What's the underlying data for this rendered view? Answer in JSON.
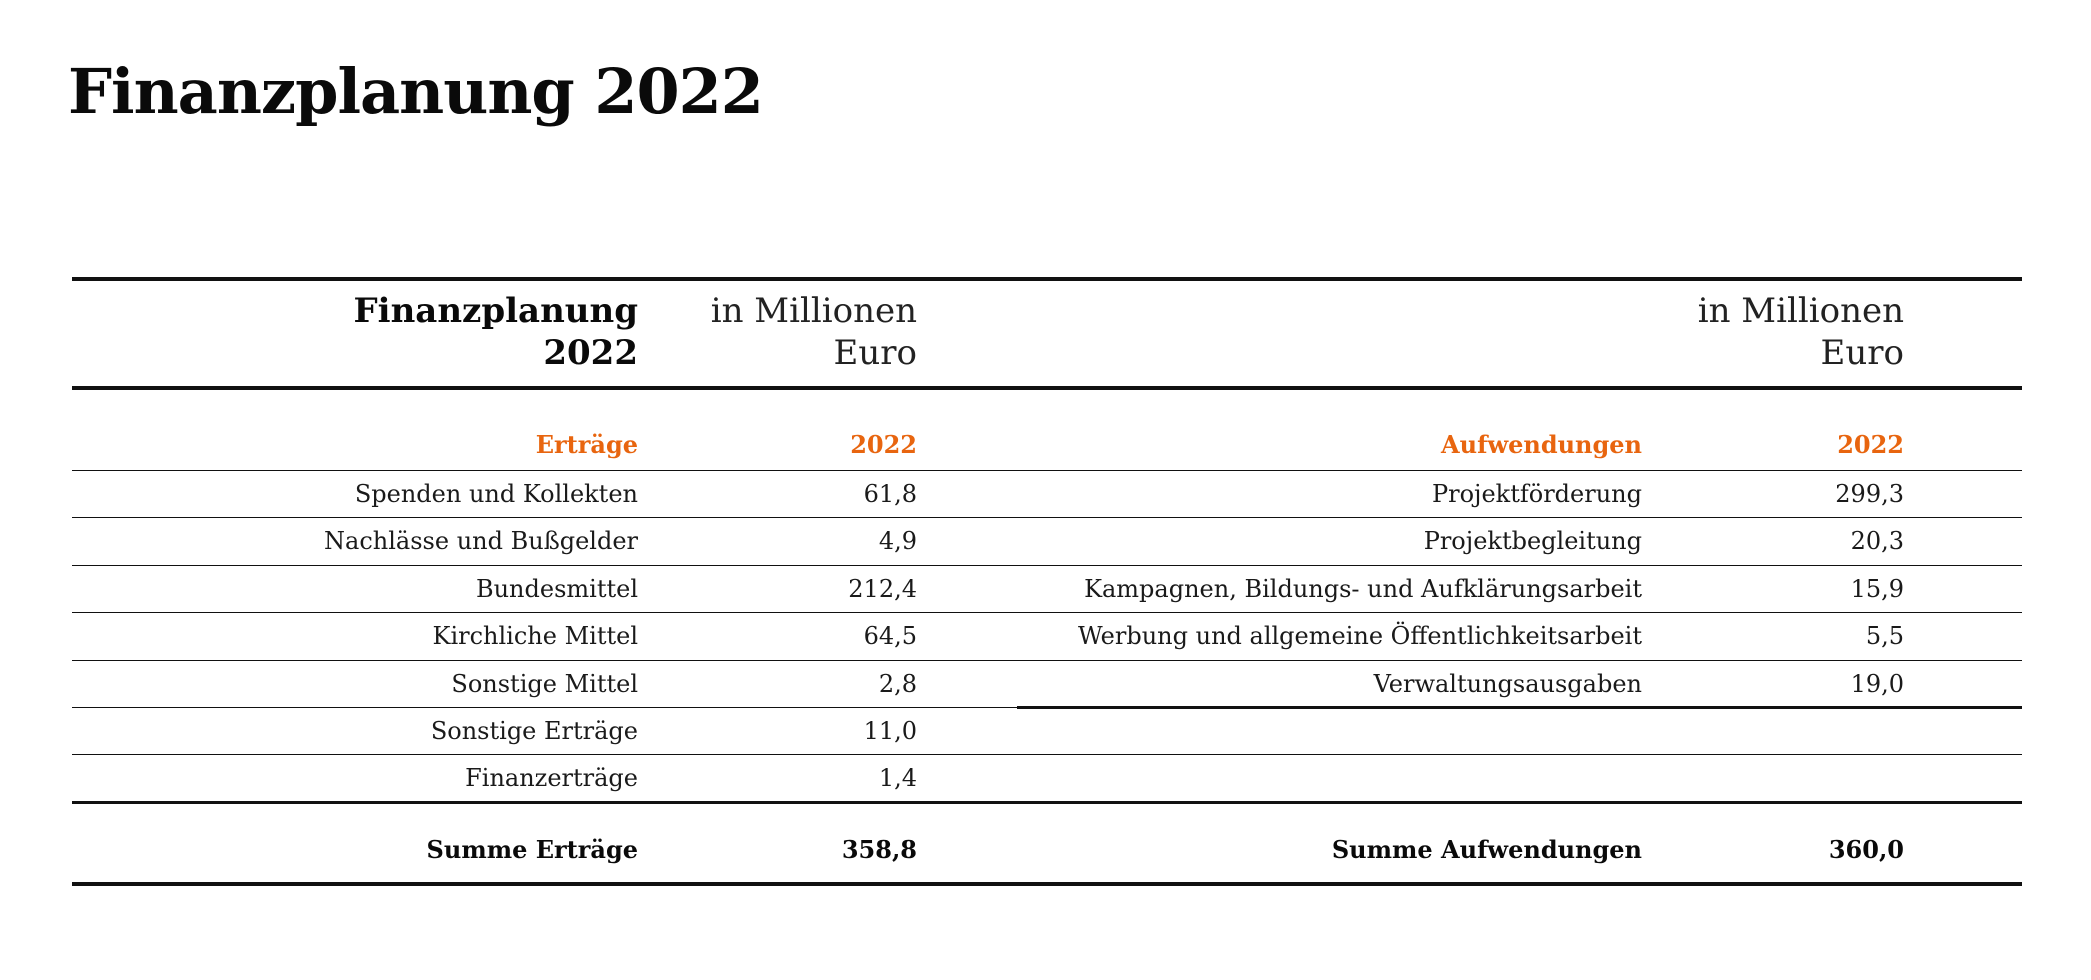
{
  "title": "Finanzplanung 2022",
  "colors": {
    "accent_orange": "#e8650f",
    "text": "#111111",
    "rule": "#111111"
  },
  "table": {
    "header": {
      "left_title_line1": "Finanzplanung",
      "left_title_line2": "2022",
      "left_unit_line1": "in Millionen",
      "left_unit_line2": "Euro",
      "right_unit_line1": "in Millionen",
      "right_unit_line2": "Euro"
    },
    "income": {
      "heading": "Erträge",
      "year": "2022",
      "rows": [
        {
          "label": "Spenden und Kollekten",
          "value": "61,8"
        },
        {
          "label": "Nachlässe und Bußgelder",
          "value": "4,9"
        },
        {
          "label": "Bundesmittel",
          "value": "212,4"
        },
        {
          "label": "Kirchliche Mittel",
          "value": "64,5"
        },
        {
          "label": "Sonstige Mittel",
          "value": "2,8"
        },
        {
          "label": "Sonstige Erträge",
          "value": "11,0"
        },
        {
          "label": "Finanzerträge",
          "value": "1,4"
        }
      ],
      "total_label": "Summe Erträge",
      "total_value": "358,8"
    },
    "expenses": {
      "heading": "Aufwendungen",
      "year": "2022",
      "rows": [
        {
          "label": "Projektförderung",
          "value": "299,3"
        },
        {
          "label": "Projektbegleitung",
          "value": "20,3"
        },
        {
          "label": "Kampagnen, Bildungs- und Aufklärungsarbeit",
          "value": "15,9"
        },
        {
          "label": "Werbung und allgemeine Öffentlichkeitsarbeit",
          "value": "5,5"
        },
        {
          "label": "Verwaltungsausgaben",
          "value": "19,0"
        }
      ],
      "total_label": "Summe Aufwendungen",
      "total_value": "360,0"
    }
  }
}
